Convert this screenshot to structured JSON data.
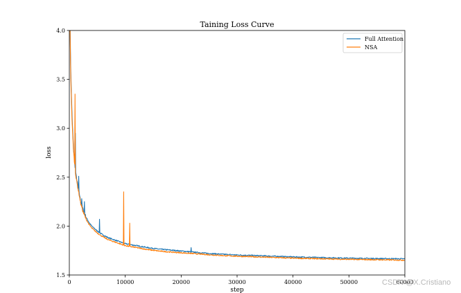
{
  "chart_data": {
    "type": "line",
    "title": "Taining Loss Curve",
    "xlabel": "step",
    "ylabel": "loss",
    "xlim": [
      0,
      60000
    ],
    "ylim": [
      1.5,
      4.0
    ],
    "x_ticks": [
      "0",
      "10000",
      "20000",
      "30000",
      "40000",
      "50000",
      "60000"
    ],
    "y_ticks": [
      "1.5",
      "2.0",
      "2.5",
      "3.0",
      "3.5",
      "4.0"
    ],
    "grid": false,
    "legend_position": "top-right",
    "series": [
      {
        "name": "Full Attention",
        "color": "#1f77b4",
        "x": [
          0,
          250,
          500,
          750,
          1000,
          1200,
          1500,
          1800,
          2000,
          2500,
          3000,
          3500,
          4000,
          5000,
          6000,
          7000,
          8000,
          9000,
          10000,
          12000,
          14000,
          16000,
          18000,
          20000,
          22000,
          25000,
          28000,
          30000,
          35000,
          40000,
          45000,
          50000,
          55000,
          60000
        ],
        "values": [
          4.6,
          3.6,
          3.1,
          2.8,
          2.62,
          2.52,
          2.42,
          2.33,
          2.26,
          2.16,
          2.09,
          2.04,
          2.0,
          1.95,
          1.91,
          1.88,
          1.86,
          1.84,
          1.82,
          1.8,
          1.78,
          1.765,
          1.755,
          1.745,
          1.735,
          1.72,
          1.71,
          1.705,
          1.695,
          1.685,
          1.678,
          1.672,
          1.668,
          1.665
        ],
        "spikes": [
          {
            "x": 1100,
            "y": 2.95
          },
          {
            "x": 1700,
            "y": 2.51
          },
          {
            "x": 2200,
            "y": 2.28
          },
          {
            "x": 2700,
            "y": 2.25
          },
          {
            "x": 5400,
            "y": 2.07
          },
          {
            "x": 21800,
            "y": 1.78
          }
        ]
      },
      {
        "name": "NSA",
        "color": "#ff7f0e",
        "x": [
          0,
          250,
          500,
          750,
          1000,
          1200,
          1500,
          1800,
          2000,
          2500,
          3000,
          3500,
          4000,
          5000,
          6000,
          7000,
          8000,
          9000,
          10000,
          12000,
          14000,
          16000,
          18000,
          20000,
          22000,
          25000,
          28000,
          30000,
          35000,
          40000,
          45000,
          50000,
          55000,
          60000
        ],
        "values": [
          4.55,
          3.55,
          3.05,
          2.77,
          2.6,
          2.5,
          2.4,
          2.31,
          2.24,
          2.14,
          2.07,
          2.02,
          1.98,
          1.93,
          1.89,
          1.86,
          1.84,
          1.82,
          1.8,
          1.78,
          1.76,
          1.745,
          1.735,
          1.727,
          1.72,
          1.707,
          1.697,
          1.692,
          1.682,
          1.672,
          1.666,
          1.66,
          1.656,
          1.652
        ],
        "spikes": [
          {
            "x": 1000,
            "y": 3.35
          },
          {
            "x": 9700,
            "y": 2.35
          },
          {
            "x": 10800,
            "y": 2.03
          }
        ]
      }
    ]
  },
  "watermark": "CSDN @X.Cristiano"
}
